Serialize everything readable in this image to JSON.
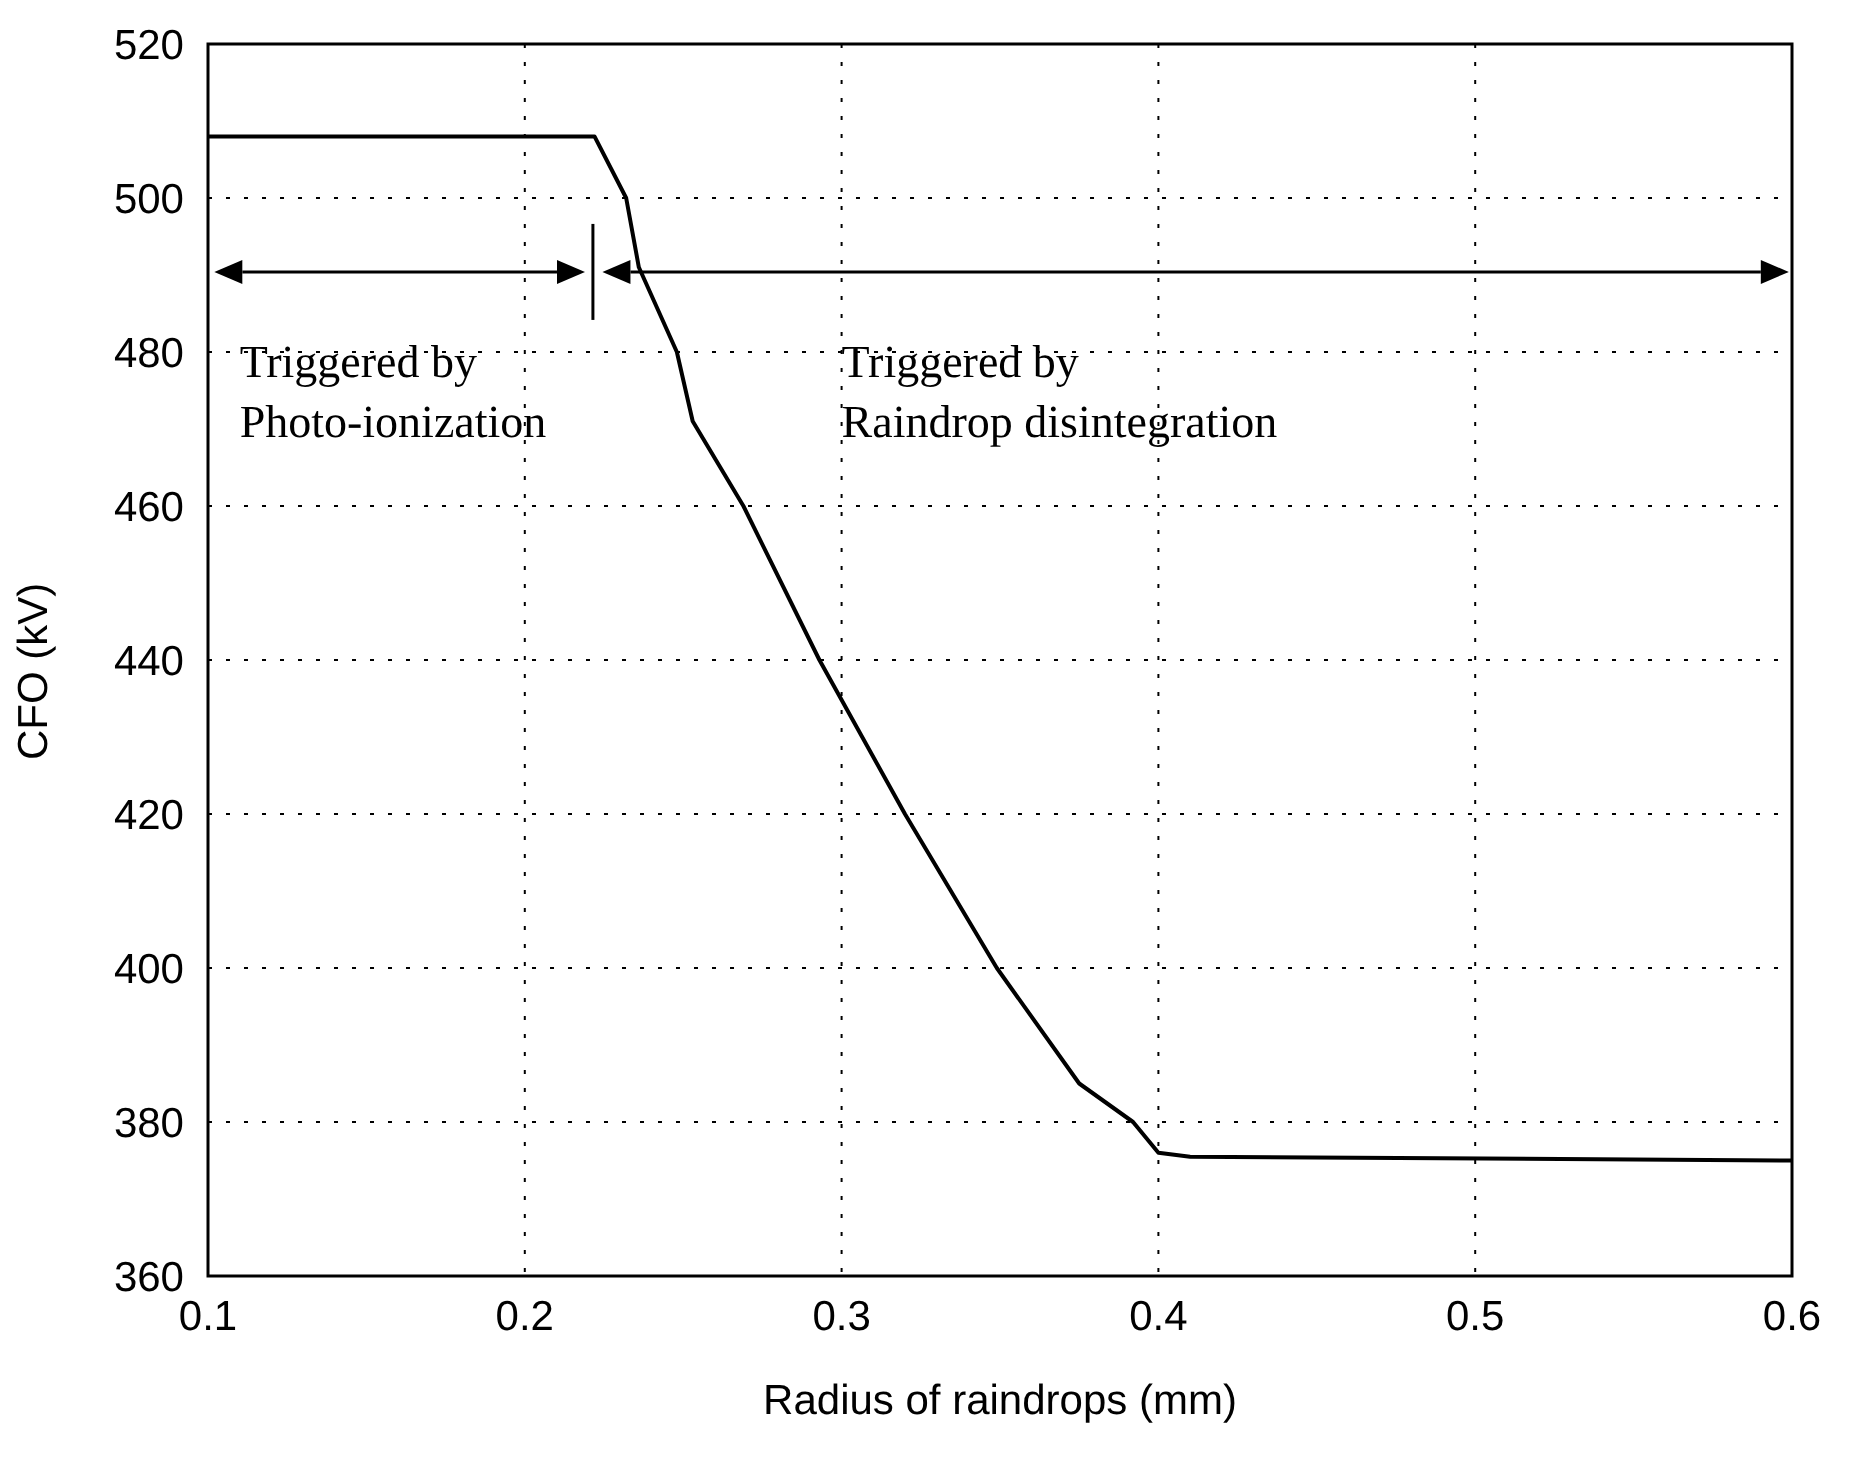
{
  "chart_data": {
    "type": "line",
    "xlabel": "Radius of raindrops (mm)",
    "ylabel": "CFO (kV)",
    "x": [
      0.1,
      0.222,
      0.232,
      0.236,
      0.248,
      0.253,
      0.269,
      0.293,
      0.32,
      0.349,
      0.375,
      0.392,
      0.4,
      0.41,
      0.6
    ],
    "series": [
      {
        "color": "#000000",
        "values": [
          508,
          508,
          500,
          491,
          480,
          471,
          460,
          440,
          420,
          400,
          385,
          380,
          376,
          375.5,
          375
        ]
      }
    ],
    "xlim": [
      0.1,
      0.6
    ],
    "xticks": [
      0.1,
      0.2,
      0.3,
      0.4,
      0.5,
      0.6
    ],
    "ylim": [
      360,
      520
    ],
    "yticks": [
      360,
      380,
      400,
      420,
      440,
      460,
      480,
      500,
      520
    ],
    "grid": true,
    "marker": "none",
    "line_style": "solid",
    "legend": false,
    "annotations": [
      "Triggered by\nPhoto-ionization",
      "Triggered by\nRaindrop disintegration"
    ]
  }
}
